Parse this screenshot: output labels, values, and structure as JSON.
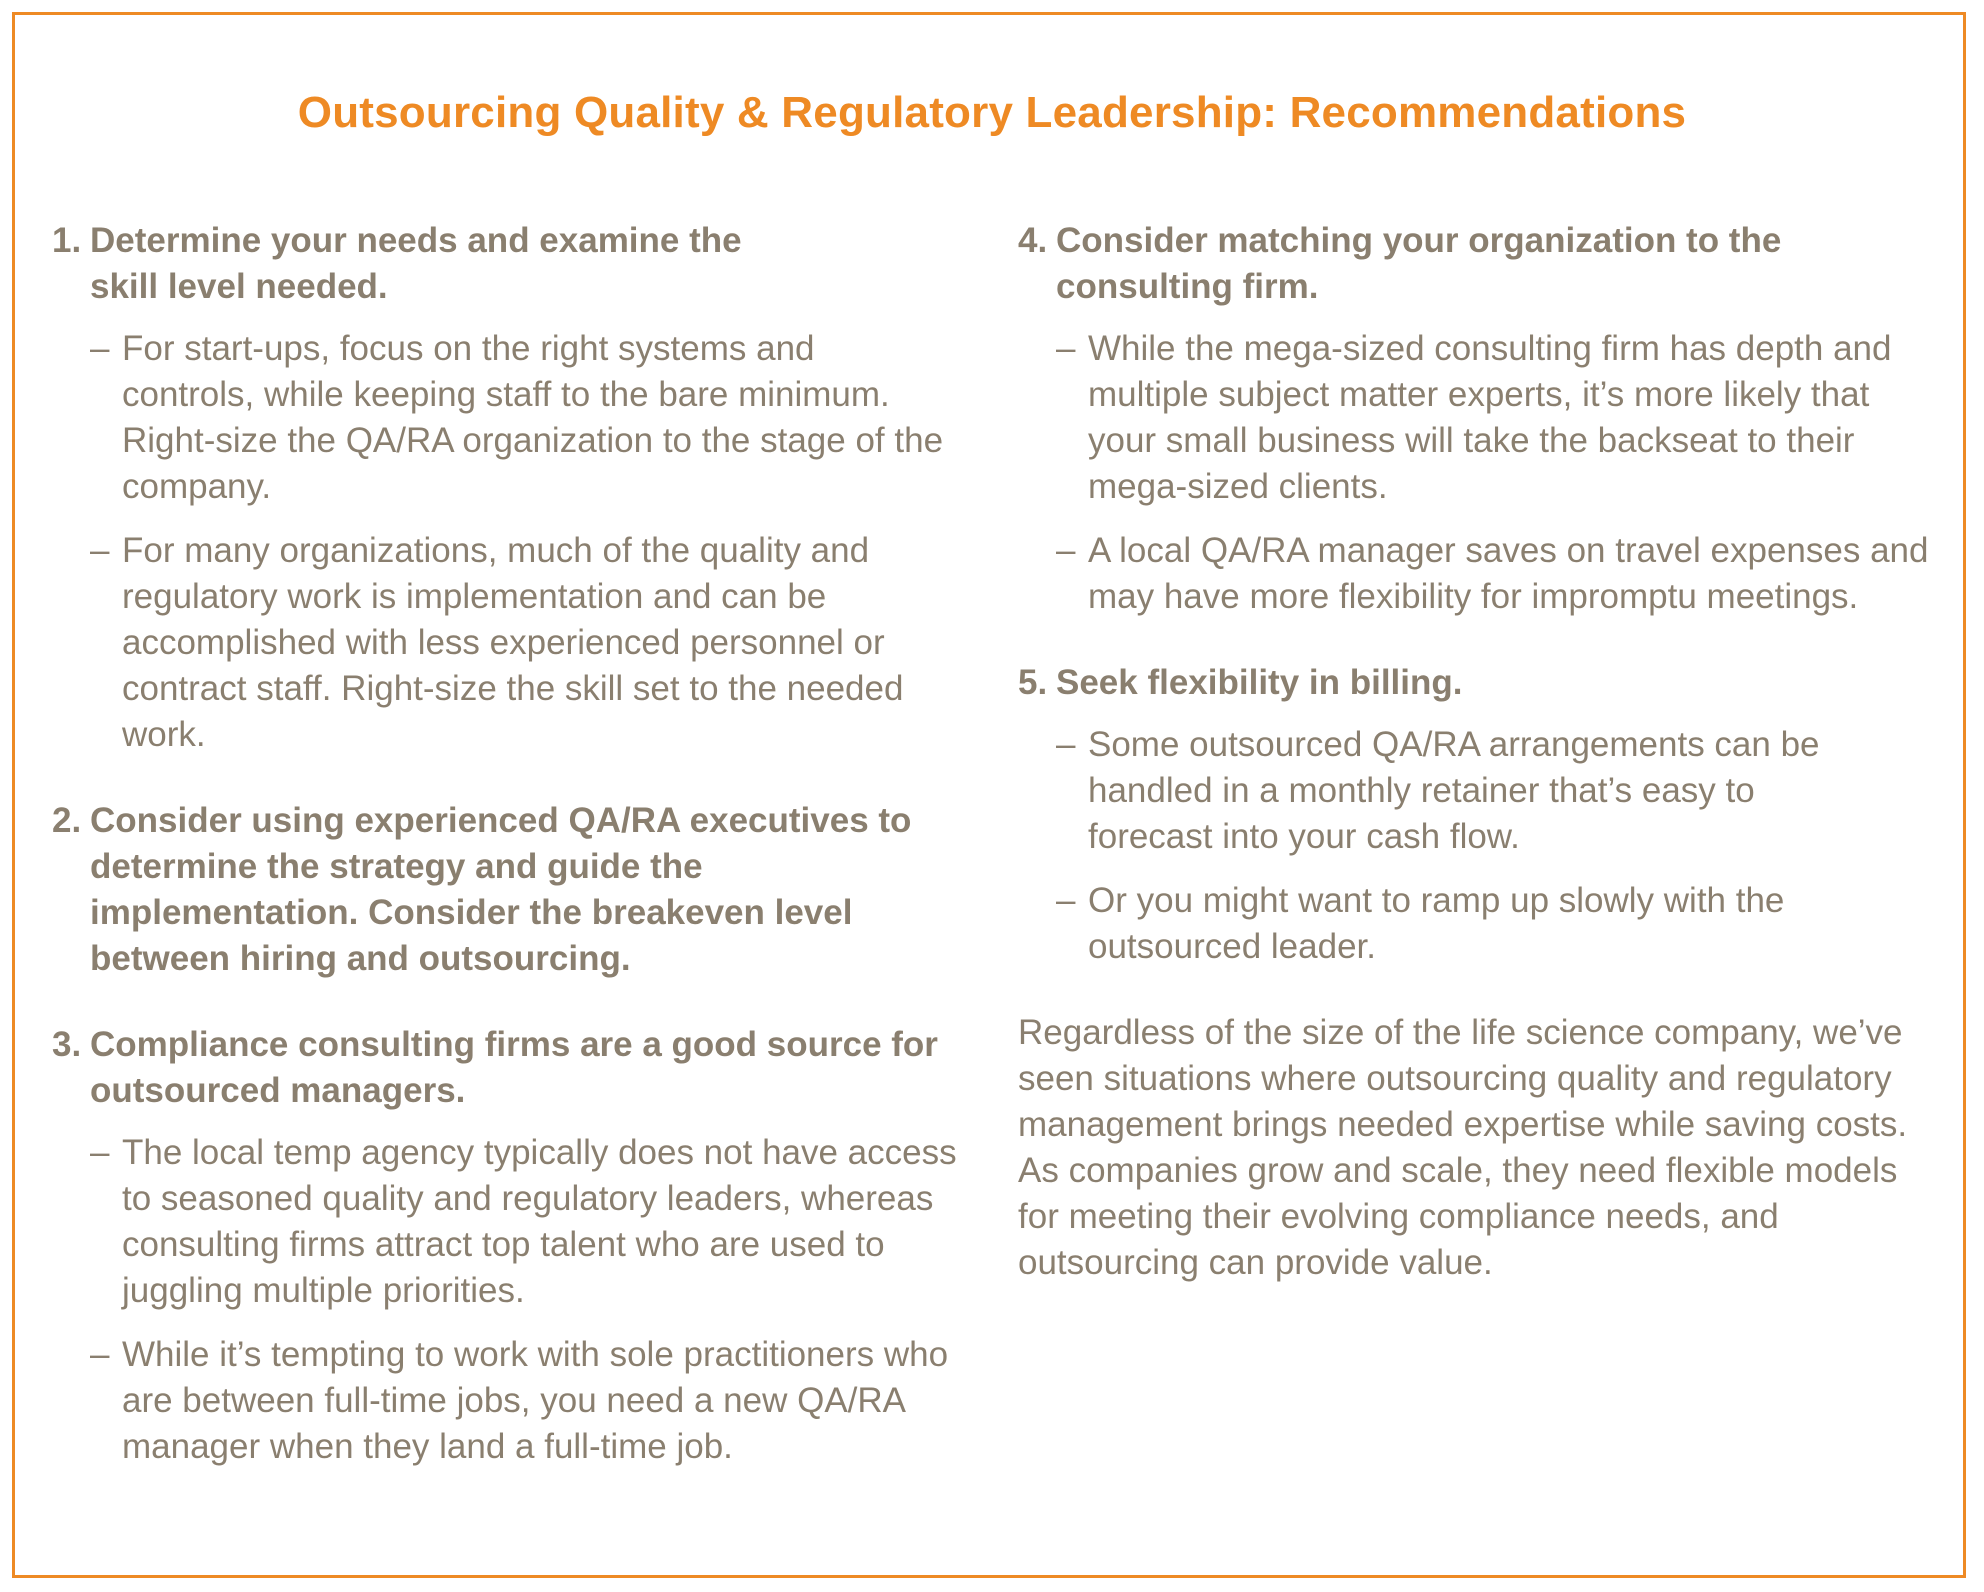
{
  "title": "Outsourcing Quality & Regulatory Leadership: Recommendations",
  "items": [
    {
      "number": "1.",
      "heading": "Determine your needs and examine the skill level needed.",
      "bullets": [
        "For start-ups, focus on the right systems and controls, while keeping staff to the bare minimum. Right-size the QA/RA organization to the stage of the company.",
        "For many organizations, much of the quality and regulatory work is implementation and can be accomplished with less experienced personnel or contract staff. Right-size the skill set to the needed work."
      ]
    },
    {
      "number": "2.",
      "heading": "Consider using experienced QA/RA executives to determine the strategy and guide the implementation. Consider the breakeven level between hiring and outsourcing.",
      "bullets": []
    },
    {
      "number": "3.",
      "heading": "Compliance consulting firms are a good source for outsourced managers.",
      "bullets": [
        "The local temp agency typically does not have access to seasoned quality and regulatory leaders, whereas consulting firms attract top talent who are used to juggling multiple priorities.",
        "While it’s tempting to work with sole practitioners who are between full-time jobs, you need a new QA/RA manager when they land a full-time job."
      ]
    },
    {
      "number": "4.",
      "heading": "Consider matching your organization to the consulting firm.",
      "bullets": [
        "While the mega-sized consulting firm has depth and multiple subject matter experts, it’s more likely that your small business will take the backseat to their mega-sized clients.",
        "A local QA/RA manager saves on travel expenses and may have more flexibility for impromptu meetings."
      ]
    },
    {
      "number": "5.",
      "heading": "Seek flexibility in billing.",
      "bullets": [
        "Some outsourced QA/RA arrangements can be handled in a monthly retainer that’s easy to forecast into your cash flow.",
        "Or you might want to ramp up slowly with the outsourced leader."
      ]
    }
  ],
  "dash_glyph": "–",
  "closing": "Regardless of the size of the life science company, we’ve seen situations where outsourcing quality and regulatory management brings needed expertise while saving costs. As companies grow and scale, they need flexible models for meeting their evolving compliance needs, and outsourcing can provide value.",
  "colors": {
    "accent": "#ee8a24",
    "text": "#8a7f6f"
  }
}
